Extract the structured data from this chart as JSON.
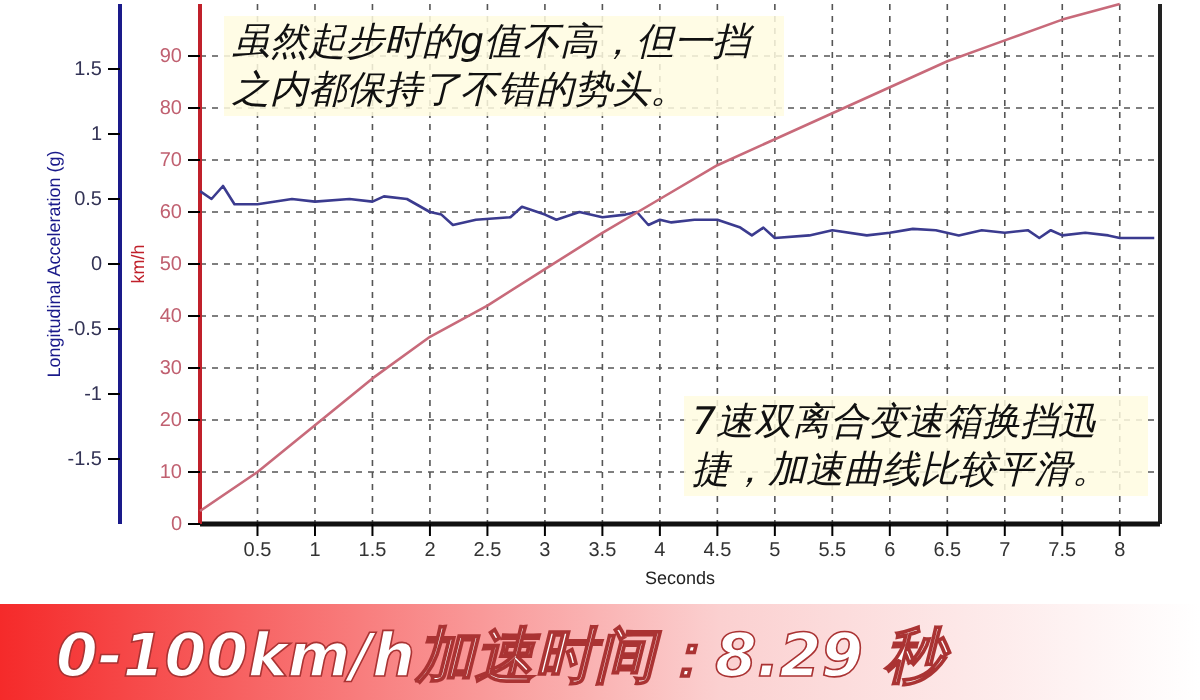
{
  "chart_data": {
    "type": "line",
    "title": "0-100km/h加速时间：8.29 秒",
    "xlabel": "Seconds",
    "ylabel": "Longitudinal Acceleration (g)",
    "y2label": "km/h",
    "xlim": [
      0,
      8.35
    ],
    "xticks": [
      0.5,
      1,
      1.5,
      2,
      2.5,
      3,
      3.5,
      4,
      4.5,
      5,
      5.5,
      6,
      6.5,
      7,
      7.5,
      8
    ],
    "ylim": [
      -2,
      2
    ],
    "yticks": [
      -1.5,
      -1,
      -0.5,
      0,
      0.5,
      1,
      1.5
    ],
    "y2lim": [
      0,
      100
    ],
    "y2ticks": [
      0,
      10,
      20,
      30,
      40,
      50,
      60,
      70,
      80,
      90
    ],
    "grid": true,
    "line_style": "solid",
    "marker": "none",
    "series": [
      {
        "color": "#3b3b8f",
        "axis": "y",
        "x": [
          0,
          0.1,
          0.2,
          0.3,
          0.5,
          0.8,
          1,
          1.3,
          1.5,
          1.6,
          1.8,
          2,
          2.1,
          2.2,
          2.4,
          2.7,
          2.8,
          3,
          3.1,
          3.3,
          3.5,
          3.7,
          3.8,
          3.9,
          4,
          4.1,
          4.3,
          4.5,
          4.7,
          4.8,
          4.9,
          5,
          5.3,
          5.5,
          5.8,
          6,
          6.2,
          6.4,
          6.6,
          6.8,
          7,
          7.2,
          7.3,
          7.4,
          7.5,
          7.7,
          7.9,
          8,
          8.3
        ],
        "values": [
          0.56,
          0.5,
          0.6,
          0.46,
          0.46,
          0.5,
          0.48,
          0.5,
          0.48,
          0.52,
          0.5,
          0.4,
          0.38,
          0.3,
          0.34,
          0.36,
          0.44,
          0.38,
          0.34,
          0.4,
          0.36,
          0.38,
          0.4,
          0.3,
          0.34,
          0.32,
          0.34,
          0.34,
          0.28,
          0.22,
          0.28,
          0.2,
          0.22,
          0.26,
          0.22,
          0.24,
          0.27,
          0.26,
          0.22,
          0.26,
          0.24,
          0.26,
          0.2,
          0.26,
          0.22,
          0.24,
          0.22,
          0.2,
          0.2
        ]
      },
      {
        "color": "#c86a7a",
        "axis": "y2",
        "x": [
          0,
          0.5,
          1,
          1.5,
          2,
          2.5,
          3,
          3.5,
          4,
          4.5,
          5,
          5.5,
          6,
          6.5,
          7,
          7.5,
          8
        ],
        "values": [
          2.5,
          10,
          19,
          28,
          36,
          42,
          49,
          56,
          62.5,
          69,
          74,
          79,
          84,
          89,
          93,
          97,
          100
        ]
      }
    ],
    "annotations": [
      "虽然起步时的g值不高，但一挡之内都保持了不错的势头。",
      "7速双离合变速箱换挡迅捷，加速曲线比较平滑。"
    ]
  }
}
